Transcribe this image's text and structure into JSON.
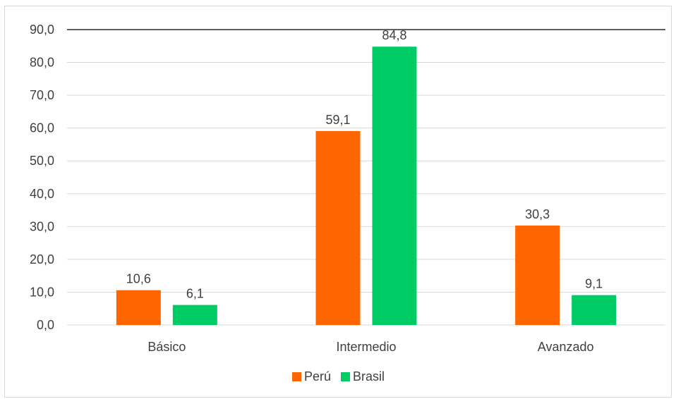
{
  "chart_data": {
    "type": "bar",
    "categories": [
      "Básico",
      "Intermedio",
      "Avanzado"
    ],
    "series": [
      {
        "name": "Perú",
        "values": [
          10.6,
          59.1,
          30.3
        ],
        "labels": [
          "10,6",
          "59,1",
          "30,3"
        ],
        "color": "#ff6600"
      },
      {
        "name": "Brasil",
        "values": [
          6.1,
          84.8,
          9.1
        ],
        "labels": [
          "6,1",
          "84,8",
          "9,1"
        ],
        "color": "#00cc66"
      }
    ],
    "ylim": [
      0,
      90
    ],
    "yticks": [
      0,
      10,
      20,
      30,
      40,
      50,
      60,
      70,
      80,
      90
    ],
    "ytick_labels": [
      "0,0",
      "10,0",
      "20,0",
      "30,0",
      "40,0",
      "50,0",
      "60,0",
      "70,0",
      "80,0",
      "90,0"
    ],
    "grid": true,
    "legend_position": "bottom",
    "title": "",
    "xlabel": "",
    "ylabel": ""
  }
}
